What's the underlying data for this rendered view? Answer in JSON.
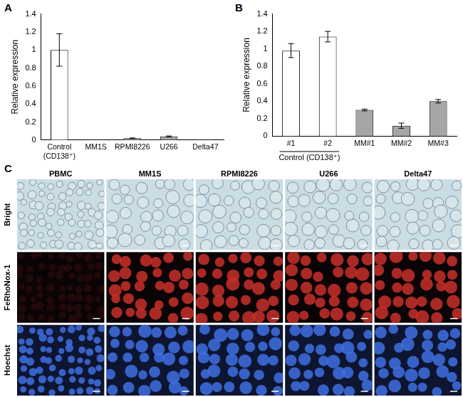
{
  "chart_data": [
    {
      "panel_label": "A",
      "type": "bar",
      "y_label": "Relative expression",
      "categories": [
        [
          "Control",
          "(CD138⁺)"
        ],
        "MM1S",
        "RPMI8226",
        "U266",
        "Delta47"
      ],
      "values": [
        1.0,
        0.003,
        0.02,
        0.04,
        0.005
      ],
      "errors": [
        0.18,
        0,
        0.003,
        0.005,
        0
      ],
      "colors": [
        "#ffffff",
        "#a6a6a6",
        "#a6a6a6",
        "#a6a6a6",
        "#a6a6a6"
      ],
      "ylim": [
        0,
        1.4
      ],
      "yticks": [
        0,
        0.2,
        0.4,
        0.6,
        0.8,
        1,
        1.2,
        1.4
      ],
      "grid": false
    },
    {
      "panel_label": "B",
      "type": "bar",
      "y_label": "Relative expression",
      "categories": [
        "#1",
        "#2",
        "MM#1",
        "MM#2",
        "MM#3"
      ],
      "values": [
        0.98,
        1.14,
        0.3,
        0.12,
        0.4
      ],
      "errors": [
        0.08,
        0.06,
        0.01,
        0.03,
        0.02
      ],
      "colors": [
        "#ffffff",
        "#ffffff",
        "#a6a6a6",
        "#a6a6a6",
        "#a6a6a6"
      ],
      "groups": [
        {
          "label": "Control (CD138⁺)",
          "members": [
            "#1",
            "#2"
          ]
        }
      ],
      "ylim": [
        0,
        1.4
      ],
      "yticks": [
        0,
        0.2,
        0.4,
        0.6,
        0.8,
        1,
        1.2,
        1.4
      ],
      "grid": false
    }
  ],
  "panel_c": {
    "label": "C",
    "columns": [
      "PBMC",
      "MM1S",
      "RPMI8226",
      "U266",
      "Delta47"
    ],
    "rows": [
      "Bright",
      "FeRhoNox-1",
      "Hoechst"
    ]
  }
}
